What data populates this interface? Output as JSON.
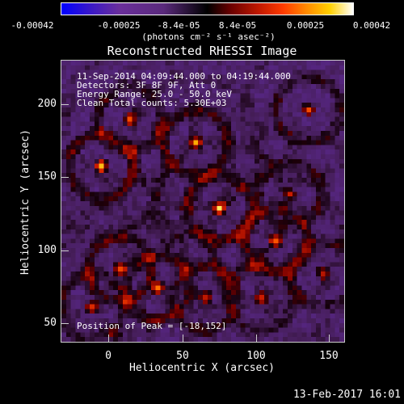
{
  "colorbar": {
    "ticks": [
      "-0.00042",
      "-0.00025",
      "-8.4e-05",
      "8.4e-05",
      "0.00025",
      "0.00042"
    ],
    "units": "(photons cm⁻² s⁻¹ asec⁻²)"
  },
  "title": "Reconstructed RHESSI Image",
  "annotations": {
    "time": "11-Sep-2014 04:09:44.000 to 04:19:44.000",
    "detectors": "Detectors: 3F 8F 9F, Att 0",
    "energy": "Energy Range: 25.0 - 50.0 keV",
    "method": "Clean     Total counts: 5.30E+03",
    "peak": "Position of Peak = [-18,152]"
  },
  "axes": {
    "xlabel": "Heliocentric X (arcsec)",
    "ylabel": "Heliocentric Y (arcsec)",
    "xticks": [
      "0",
      "50",
      "100",
      "150"
    ],
    "yticks": [
      "200",
      "150",
      "100",
      "50"
    ]
  },
  "footer": "13-Feb-2017 16:01"
}
